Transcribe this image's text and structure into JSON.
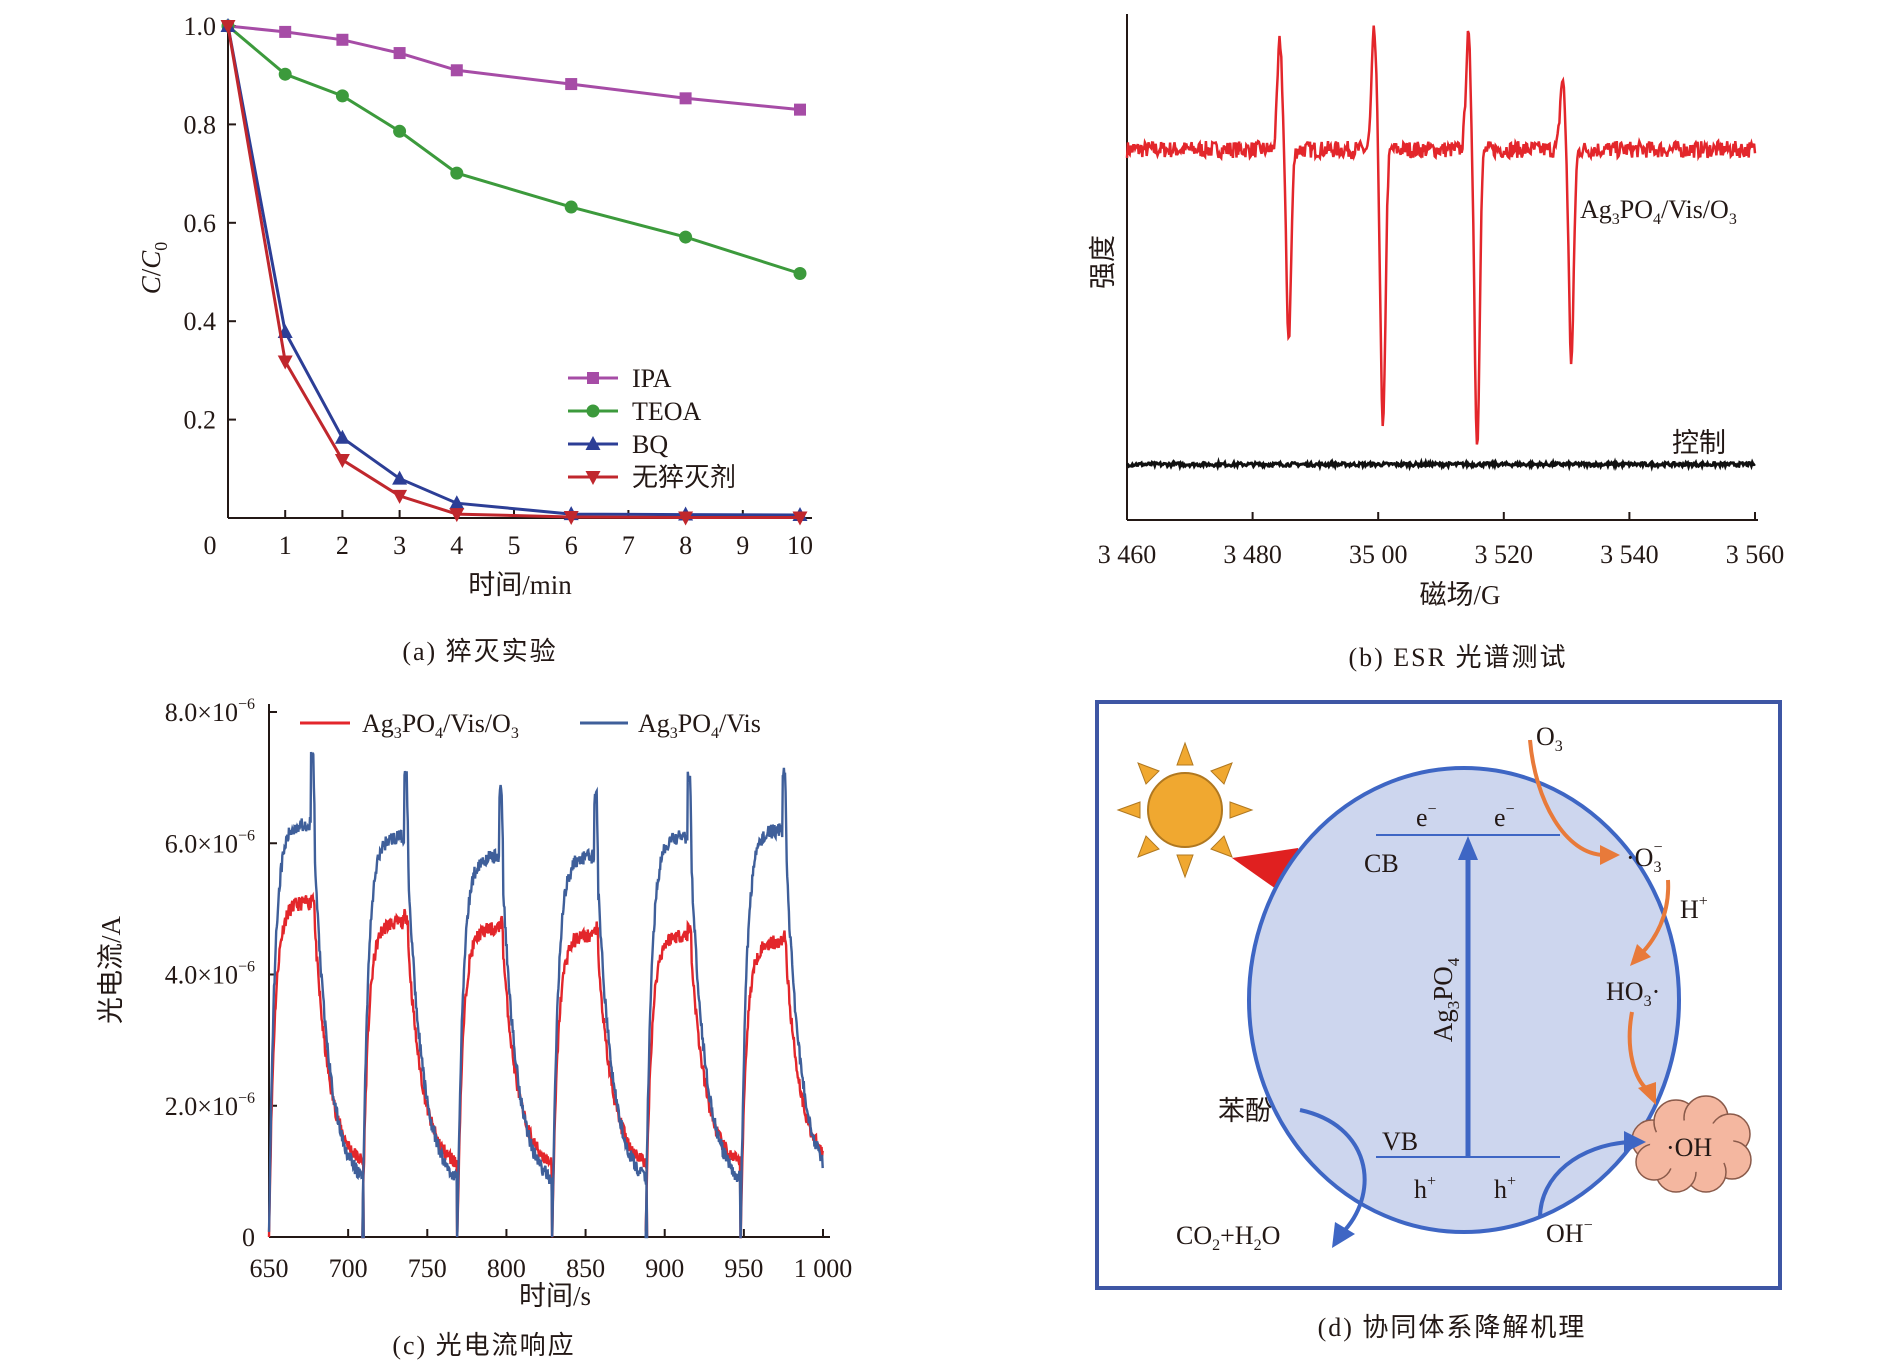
{
  "panels": {
    "a": {
      "caption": "(a) 猝灭实验",
      "chart_data": {
        "type": "line",
        "xlabel": "时间/min",
        "ylabel_main": "C",
        "ylabel_sep": "/",
        "ylabel_base": "C",
        "ylabel_sub": "0",
        "xlim": [
          0,
          10
        ],
        "ylim": [
          0,
          1.0
        ],
        "xticks": [
          "0",
          "1",
          "2",
          "3",
          "4",
          "5",
          "6",
          "7",
          "8",
          "9",
          "10"
        ],
        "yticks": [
          "0.2",
          "0.4",
          "0.6",
          "0.8",
          "1.0"
        ],
        "grid": false,
        "legend_position": "bottom-right",
        "x": [
          0,
          1,
          2,
          3,
          4,
          6,
          8,
          10
        ],
        "series": [
          {
            "name": "IPA",
            "color": "#a64ca6",
            "marker": "square",
            "values": [
              1.0,
              0.988,
              0.972,
              0.945,
              0.91,
              0.882,
              0.853,
              0.83
            ]
          },
          {
            "name": "TEOA",
            "color": "#3c9a3c",
            "marker": "circle",
            "values": [
              1.0,
              0.902,
              0.858,
              0.786,
              0.701,
              0.632,
              0.571,
              0.497
            ]
          },
          {
            "name": "BQ",
            "color": "#2c3e96",
            "marker": "triangle-up",
            "values": [
              1.0,
              0.378,
              0.163,
              0.08,
              0.03,
              0.008,
              0.007,
              0.006
            ]
          },
          {
            "name": "无猝灭剂",
            "color": "#c0272d",
            "marker": "triangle-down",
            "values": [
              1.0,
              0.318,
              0.118,
              0.045,
              0.008,
              0.002,
              0.001,
              0.001
            ]
          }
        ]
      }
    },
    "b": {
      "caption": "(b) ESR 光谱测试",
      "chart_data": {
        "type": "line",
        "xlabel": "磁场/G",
        "ylabel": "强度",
        "xlim": [
          3460,
          3560
        ],
        "xticks": [
          "3 460",
          "3 480",
          "35 00",
          "3 520",
          "3 540",
          "3 560"
        ],
        "grid": false,
        "series": [
          {
            "name_main": "Ag",
            "name_s1": "3",
            "name_mid": "PO",
            "name_s2": "4",
            "name_tail": "/Vis/O",
            "name_s3": "3",
            "color": "#e3262b",
            "baseline": 0.75,
            "noise": 0.018,
            "peaks": [
              {
                "x": 3485,
                "up": 0.98,
                "down": 0.35
              },
              {
                "x": 3500,
                "up": 1.0,
                "down": 0.15
              },
              {
                "x": 3515,
                "up": 0.99,
                "down": 0.12
              },
              {
                "x": 3530,
                "up": 0.9,
                "down": 0.3
              }
            ]
          },
          {
            "name": "控制",
            "color": "#111111",
            "baseline": 0.08,
            "noise": 0.004,
            "peaks": []
          }
        ]
      }
    },
    "c": {
      "caption": "(c) 光电流响应",
      "chart_data": {
        "type": "line",
        "xlabel": "时间/s",
        "ylabel": "光电流/A",
        "xlim": [
          650,
          1000
        ],
        "ylim": [
          0,
          8e-06
        ],
        "xticks": [
          "650",
          "700",
          "750",
          "800",
          "850",
          "900",
          "950",
          "1 000"
        ],
        "yticks": [
          {
            "base": "0",
            "exp": ""
          },
          {
            "base": "2.0×10",
            "exp": "−6"
          },
          {
            "base": "4.0×10",
            "exp": "−6"
          },
          {
            "base": "6.0×10",
            "exp": "−6"
          },
          {
            "base": "8.0×10",
            "exp": "−6"
          }
        ],
        "grid": false,
        "legend_position": "top",
        "cycle_start": [
          650,
          709,
          769,
          829,
          888,
          948
        ],
        "cycle_on": 28,
        "cycle_len": 60,
        "series": [
          {
            "name_main": "Ag",
            "name_s1": "3",
            "name_mid": "PO",
            "name_s2": "4",
            "name_tail": "/Vis/O",
            "name_s3": "3",
            "color": "#e3262b",
            "peaks": [
              5.1e-06,
              4.8e-06,
              4.7e-06,
              4.6e-06,
              4.6e-06,
              4.5e-06
            ],
            "spikes": [
              5.2e-06,
              4.9e-06,
              4.8e-06,
              4.7e-06,
              4.7e-06,
              4.6e-06
            ],
            "trough": 1e-06
          },
          {
            "name_main": "Ag",
            "name_s1": "3",
            "name_mid": "PO",
            "name_s2": "4",
            "name_tail": "/Vis",
            "name_s3": "",
            "color": "#3f5f9a",
            "peaks": [
              6.3e-06,
              6.1e-06,
              5.8e-06,
              5.8e-06,
              6.1e-06,
              6.2e-06
            ],
            "spikes": [
              7.3e-06,
              7e-06,
              6.8e-06,
              6.7e-06,
              7e-06,
              7.1e-06
            ],
            "trough": 7e-07
          }
        ]
      }
    },
    "d": {
      "caption": "(d) 协同体系降解机理",
      "labels": {
        "cb": "CB",
        "vb": "VB",
        "e1": "e",
        "e2": "e",
        "e_sup": "−",
        "h1": "h",
        "h2": "h",
        "h_sup": "+",
        "semi_main": "Ag",
        "semi_s1": "3",
        "semi_mid": "PO",
        "semi_s2": "4",
        "o3_main": "O",
        "o3_sub": "3",
        "o3rad_dot": "·O",
        "o3rad_sub": "3",
        "o3rad_sup": "−",
        "hplus_main": "H",
        "hplus_sup": "+",
        "ho3_main": "HO",
        "ho3_sub": "3",
        "ho3_dot": "·",
        "oh_radical": "·OH",
        "phenol": "苯酚",
        "co2_a": "CO",
        "co2_s": "2",
        "co2_b": "+H",
        "co2_s2": "2",
        "co2_c": "O",
        "ohminus_main": "OH",
        "ohminus_sup": "−"
      },
      "colors": {
        "frame": "#3e56a4",
        "ellipse_fill": "#cdd6ee",
        "ellipse_stroke": "#3e66c4",
        "sun": "#f0a830",
        "sun_ray": "#f0a830",
        "bolt": "#e02020",
        "orange_arrow": "#e87a3a",
        "blue_arrow": "#3e66c4",
        "cloud": "#f4b7a0"
      }
    }
  }
}
